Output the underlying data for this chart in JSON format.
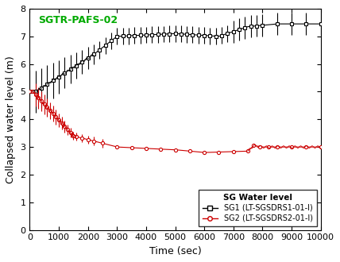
{
  "title": "SGTR-PAFS-02",
  "title_color": "#00aa00",
  "xlabel": "Time (sec)",
  "ylabel": "Collapsed water level (m)",
  "xlim": [
    0,
    10000
  ],
  "ylim": [
    0,
    8
  ],
  "yticks": [
    0,
    1,
    2,
    3,
    4,
    5,
    6,
    7,
    8
  ],
  "xticks": [
    0,
    1000,
    2000,
    3000,
    4000,
    5000,
    6000,
    7000,
    8000,
    9000,
    10000
  ],
  "legend_title": "SG Water level",
  "legend_label_sg1": "SG1 (LT-SGSDRS1-01-I)",
  "legend_label_sg2": "SG2 (LT-SGSDRS2-01-I)",
  "sg1_color": "#000000",
  "sg2_color": "#cc0000",
  "background_color": "#ffffff"
}
